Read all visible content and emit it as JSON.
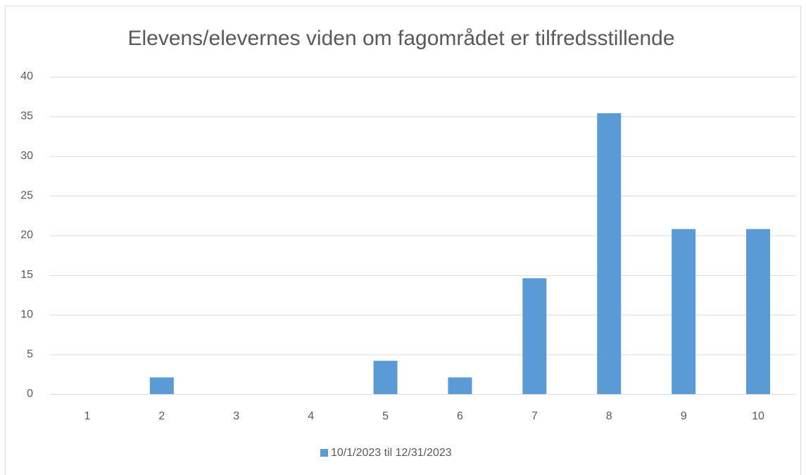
{
  "chart_data": {
    "type": "bar",
    "title": "Elevens/elevernes viden om fagområdet er tilfredsstillende",
    "categories": [
      "1",
      "2",
      "3",
      "4",
      "5",
      "6",
      "7",
      "8",
      "9",
      "10"
    ],
    "series": [
      {
        "name": "10/1/2023 til 12/31/2023",
        "color": "#5b9bd5",
        "values": [
          0,
          2.1,
          0,
          0,
          4.2,
          2.1,
          14.6,
          35.4,
          20.8,
          20.8
        ]
      }
    ],
    "ylim": [
      0,
      40
    ],
    "yticks": [
      0,
      5,
      10,
      15,
      20,
      25,
      30,
      35,
      40
    ],
    "grid": true,
    "legend": "bottom"
  }
}
